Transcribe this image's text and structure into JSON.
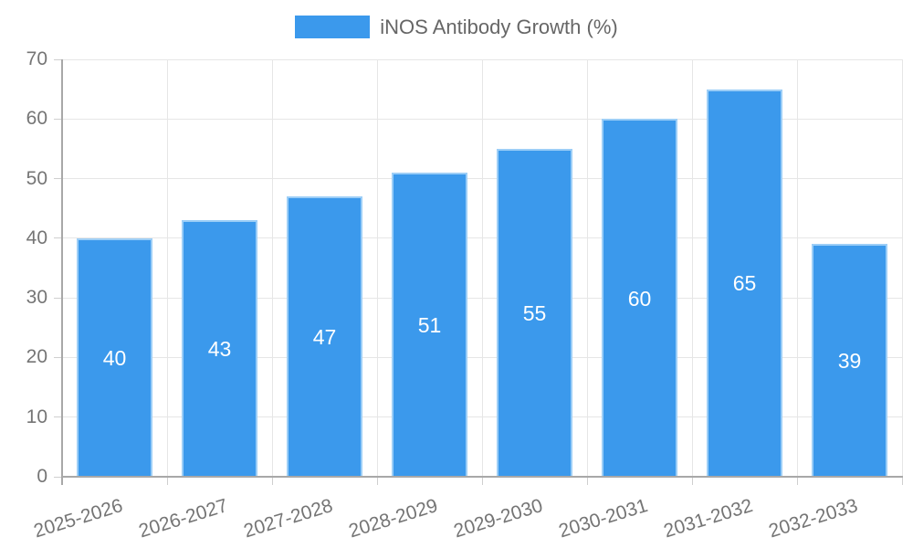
{
  "chart_data": {
    "type": "bar",
    "title": "iNOS Antibody Growth (%)",
    "categories": [
      "2025-2026",
      "2026-2027",
      "2027-2028",
      "2028-2029",
      "2029-2030",
      "2030-2031",
      "2031-2032",
      "2032-2033"
    ],
    "series": [
      {
        "name": "iNOS Antibody Growth (%)",
        "values": [
          40,
          43,
          47,
          51,
          55,
          60,
          65,
          39
        ]
      }
    ],
    "xlabel": "",
    "ylabel": "",
    "ylim": [
      0,
      70
    ],
    "yticks": [
      0,
      10,
      20,
      30,
      40,
      50,
      60,
      70
    ],
    "grid": true,
    "legend_position": "top-center",
    "value_label_position": "inside-center"
  },
  "legend": {
    "label": "iNOS Antibody Growth (%)"
  },
  "colors": {
    "bar_fill": "#3b99ec",
    "bar_border": "#9ccef7",
    "grid_line": "#e6e6e6",
    "axis_line": "#a8a8a8",
    "tick_mark": "#cfcfcf",
    "tick_label": "#757575",
    "legend_text": "#666666",
    "value_label": "#ffffff",
    "background": "#ffffff"
  }
}
